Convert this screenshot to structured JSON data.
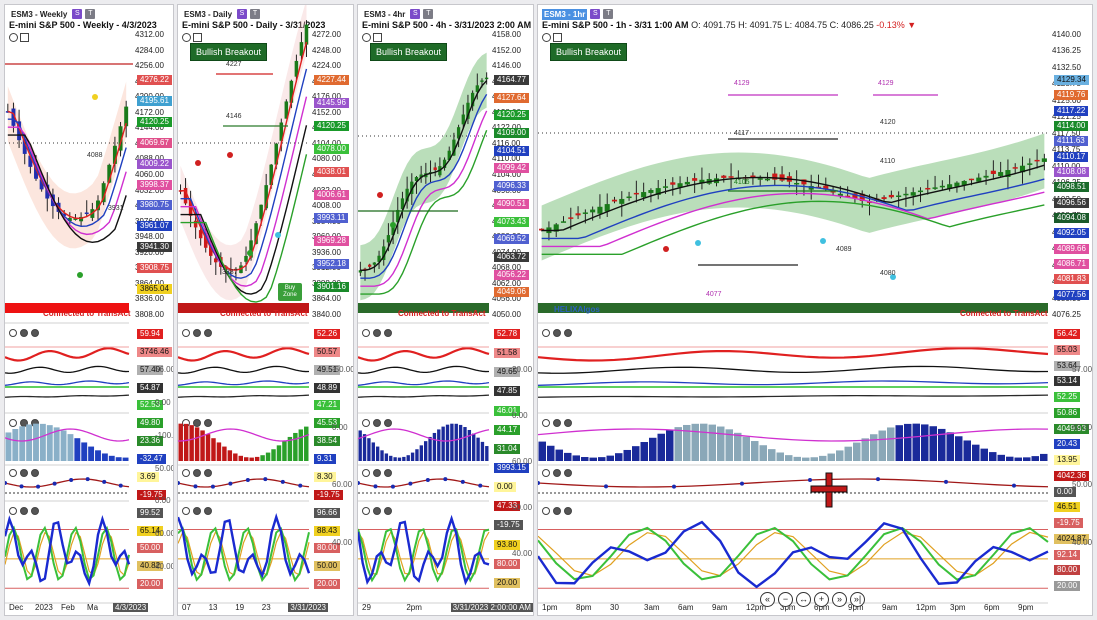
{
  "panels": [
    {
      "id": "weekly",
      "tab": "ESM3 - Weekly",
      "title": "E-mini S&P 500 - Weekly - 4/3/2023",
      "connected": "Connected to TransAct",
      "price_ticks": [
        "4312.00",
        "4284.00",
        "4256.00",
        "4228.00",
        "4200.00",
        "4172.00",
        "4144.00",
        "4116.00",
        "4088.00",
        "4060.00",
        "4032.00",
        "4004.00",
        "3976.00",
        "3948.00",
        "3920.00",
        "3892.00",
        "3864.00",
        "3836.00",
        "3808.00"
      ],
      "badges": [
        {
          "text": "4276.22",
          "color": "#e05050"
        },
        {
          "text": "4195.61",
          "color": "#3fa0d0"
        },
        {
          "text": "4120.25",
          "color": "#1a9a2a"
        },
        {
          "text": "4069.67",
          "color": "#e04f8a"
        },
        {
          "text": "4009.22",
          "color": "#9a55cc"
        },
        {
          "text": "3998.37",
          "color": "#e050a0"
        },
        {
          "text": "3980.75",
          "color": "#5060d0"
        },
        {
          "text": "3961.07",
          "color": "#2040c0"
        },
        {
          "text": "3941.30",
          "color": "#3a3a3a"
        },
        {
          "text": "3908.75",
          "color": "#e05050"
        },
        {
          "text": "3865.04",
          "color": "#f0d020"
        }
      ],
      "ind_badges": [
        "59.94",
        "3746.46",
        "57.40",
        "54.87",
        "52.53",
        "49.80",
        "23.36",
        "-32.47",
        "3.69",
        "-19.75",
        "99.52",
        "65.14",
        "50.00",
        "40.82",
        "20.00"
      ],
      "ind_ticks": [
        "56.00",
        "0.00",
        "-100.00",
        "50.00",
        "0.00",
        "60.00",
        "40.00"
      ],
      "time_labels": [
        "Dec",
        "2023",
        "Feb",
        "Ma",
        "4/3/2023"
      ],
      "label_4088": "4088",
      "label_3931": "3931"
    },
    {
      "id": "daily",
      "tab": "ESM3 - Daily",
      "title": "E-mini S&P 500 - Daily - 3/31/2023",
      "connected": "Connected to TransAct",
      "bullish": "Bullish Breakout",
      "buy_zone": "Buy Zone",
      "price_ticks": [
        "4272.00",
        "4248.00",
        "4224.00",
        "4200.00",
        "4176.00",
        "4152.00",
        "4128.00",
        "4104.00",
        "4080.00",
        "4056.00",
        "4032.00",
        "4008.00",
        "3984.00",
        "3960.00",
        "3936.00",
        "3912.00",
        "3888.00",
        "3864.00",
        "3840.00"
      ],
      "badges": [
        {
          "text": "4227.44",
          "color": "#e06a30"
        },
        {
          "text": "4145.96",
          "color": "#9a55cc"
        },
        {
          "text": "4120.25",
          "color": "#1a9a2a"
        },
        {
          "text": "4078.00",
          "color": "#3ac03a"
        },
        {
          "text": "4038.01",
          "color": "#e05050"
        },
        {
          "text": "4006.61",
          "color": "#e050a0"
        },
        {
          "text": "3993.11",
          "color": "#5060d0"
        },
        {
          "text": "3969.28",
          "color": "#e050a0"
        },
        {
          "text": "3952.18",
          "color": "#5060d0"
        },
        {
          "text": "3901.16",
          "color": "#1a8a2a"
        }
      ],
      "ind_badges": [
        "52.26",
        "50.57",
        "49.51",
        "48.89",
        "47.21",
        "45.53",
        "38.54",
        "9.31",
        "8.30",
        "-19.75",
        "96.66",
        "88.43",
        "80.00",
        "50.00",
        "20.00"
      ],
      "ind_ticks": [
        "-50.00",
        "0.00",
        "60.00",
        "40.00"
      ],
      "time_labels": [
        "07",
        "13",
        "19",
        "23",
        "3/31/2023"
      ],
      "levels": [
        "4227",
        "4146",
        "3887"
      ]
    },
    {
      "id": "4hr",
      "tab": "ESM3 - 4hr",
      "title": "E-mini S&P 500 - 4h - 3/31/2023 2:00 AM",
      "connected": "Connected to TransAct",
      "bullish": "Bullish Breakout",
      "price_ticks": [
        "4158.00",
        "4152.00",
        "4146.00",
        "4140.00",
        "4134.00",
        "4128.00",
        "4122.00",
        "4116.00",
        "4110.00",
        "4104.00",
        "4098.00",
        "4092.00",
        "4086.00",
        "4080.00",
        "4074.00",
        "4068.00",
        "4062.00",
        "4056.00",
        "4050.00"
      ],
      "badges": [
        {
          "text": "4164.77",
          "color": "#3a3a3a"
        },
        {
          "text": "4127.64",
          "color": "#e06a30"
        },
        {
          "text": "4120.25",
          "color": "#1a9a2a"
        },
        {
          "text": "4109.00",
          "color": "#1a8a2a"
        },
        {
          "text": "4104.51",
          "color": "#2040c0"
        },
        {
          "text": "4099.42",
          "color": "#e050a0"
        },
        {
          "text": "4096.33",
          "color": "#5060d0"
        },
        {
          "text": "4090.51",
          "color": "#e050a0"
        },
        {
          "text": "4073.43",
          "color": "#3ac03a"
        },
        {
          "text": "4069.52",
          "color": "#5060d0"
        },
        {
          "text": "4063.72",
          "color": "#3a3a3a"
        },
        {
          "text": "4056.22",
          "color": "#e050a0"
        },
        {
          "text": "4049.06",
          "color": "#e06a30"
        }
      ],
      "ind_badges": [
        "52.78",
        "51.58",
        "49.65",
        "47.85",
        "46.01",
        "44.17",
        "31.04",
        "3993.15",
        "0.00",
        "47.33",
        "-19.75",
        "93.80",
        "80.00",
        "20.00"
      ],
      "ind_ticks": [
        "20.00",
        "0.00",
        "60.00",
        "50.00",
        "40.00"
      ],
      "time_labels": [
        "29",
        "2pm",
        "3/31/2023 2:00:00 AM"
      ]
    },
    {
      "id": "1hr",
      "tab": "ESM3 - 1hr",
      "title": "E-mini S&P 500 - 1h - 3/31 1:00 AM",
      "ohlc": "O: 4091.75  H: 4091.75  L: 4084.75  C: 4086.25",
      "change": "-0.13%",
      "connected": "Connected to TransAct",
      "bullish": "Bullish Breakout",
      "price_ticks": [
        "4140.00",
        "4136.25",
        "4132.50",
        "4128.75",
        "4125.00",
        "4121.25",
        "4117.50",
        "4113.75",
        "4110.00",
        "4106.25",
        "4102.50",
        "4098.75",
        "4095.00",
        "4091.25",
        "4087.50",
        "4083.75",
        "4080.00",
        "4076.25"
      ],
      "badges": [
        {
          "text": "4129.34",
          "color": "#6ab0e0"
        },
        {
          "text": "4119.76",
          "color": "#e06a30"
        },
        {
          "text": "4117.22",
          "color": "#2040c0"
        },
        {
          "text": "4114.00",
          "color": "#1a8a2a"
        },
        {
          "text": "4111.63",
          "color": "#5060d0"
        },
        {
          "text": "4110.17",
          "color": "#2040c0"
        },
        {
          "text": "4108.08",
          "color": "#9a55cc"
        },
        {
          "text": "4098.51",
          "color": "#1a6a2a"
        },
        {
          "text": "4096.56",
          "color": "#3a3a3a"
        },
        {
          "text": "4094.08",
          "color": "#1a5a2a"
        },
        {
          "text": "4092.05",
          "color": "#2040c0"
        },
        {
          "text": "4089.66",
          "color": "#e050a0"
        },
        {
          "text": "4086.71",
          "color": "#e050a0"
        },
        {
          "text": "4081.83",
          "color": "#e05050"
        },
        {
          "text": "4077.56",
          "color": "#2040c0"
        }
      ],
      "ind_badges": [
        "56.42",
        "55.03",
        "53.64",
        "53.14",
        "52.25",
        "50.86",
        "4049.93",
        "20.43",
        "13.95",
        "4042.36",
        "0.00",
        "46.51",
        "-19.75",
        "4024.87",
        "92.14",
        "80.00",
        "20.00"
      ],
      "ind_ticks": [
        "57.00",
        "60.00",
        "50.00",
        "40.00"
      ],
      "time_labels": [
        "1pm",
        "8pm",
        "30",
        "3am",
        "6am",
        "9am",
        "12pm",
        "3pm",
        "6pm",
        "9pm",
        "9am",
        "12pm",
        "3pm",
        "6pm",
        "9pm"
      ],
      "levels": [
        "4129",
        "4129",
        "4117",
        "4120",
        "4110",
        "4105",
        "4089",
        "4080",
        "4077"
      ],
      "watermark": "HELIXAlgos"
    }
  ],
  "nav_buttons": [
    "«",
    "−",
    "↔",
    "+",
    "»",
    "»|"
  ],
  "colors": {
    "bull_candle": "#1a7a1a",
    "bear_candle": "#cc1a1a",
    "cloud": "#3aa03a",
    "connected": "#d61f1f",
    "accent": "#4a90e2"
  }
}
